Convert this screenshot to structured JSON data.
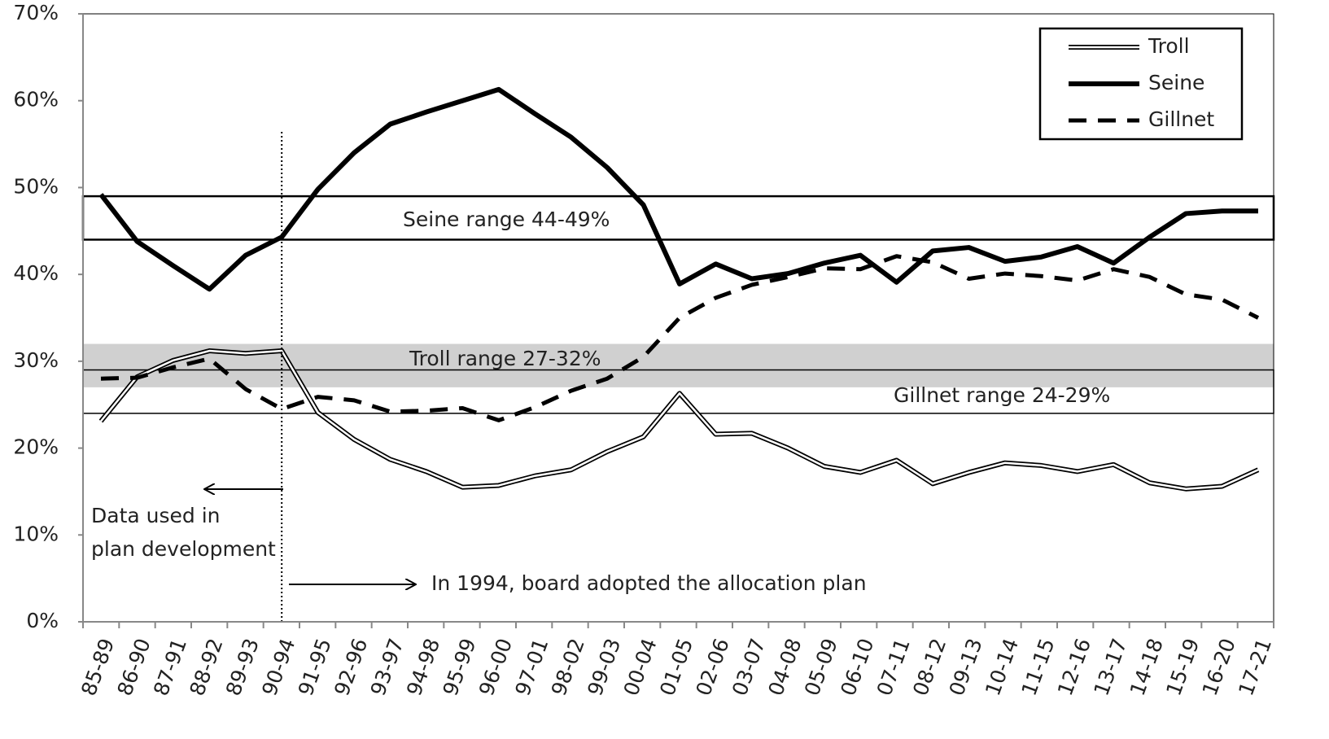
{
  "chart_data": {
    "type": "line",
    "categories": [
      "85-89",
      "86-90",
      "87-91",
      "88-92",
      "89-93",
      "90-94",
      "91-95",
      "92-96",
      "93-97",
      "94-98",
      "95-99",
      "96-00",
      "97-01",
      "98-02",
      "99-03",
      "00-04",
      "01-05",
      "02-06",
      "03-07",
      "04-08",
      "05-09",
      "06-10",
      "07-11",
      "08-12",
      "09-13",
      "10-14",
      "11-15",
      "12-16",
      "13-17",
      "14-18",
      "15-19",
      "16-20",
      "17-21"
    ],
    "series": [
      {
        "name": "Troll",
        "color": "#000000",
        "style": "double",
        "values": [
          23.1,
          28.2,
          30.1,
          31.2,
          30.9,
          31.2,
          24.1,
          21,
          18.7,
          17.3,
          15.5,
          15.7,
          16.8,
          17.5,
          19.6,
          21.3,
          26.3,
          21.6,
          21.7,
          20,
          17.9,
          17.2,
          18.6,
          15.9,
          17.2,
          18.3,
          18,
          17.3,
          18.1,
          16,
          15.3,
          15.6,
          17.5
        ]
      },
      {
        "name": "Seine",
        "color": "#000000",
        "style": "solid",
        "values": [
          49.2,
          43.8,
          41,
          38.3,
          42.2,
          44.3,
          49.8,
          54,
          57.3,
          58.7,
          60,
          61.3,
          58.5,
          55.8,
          52.3,
          48,
          38.9,
          41.2,
          39.5,
          40.1,
          41.3,
          42.2,
          39.1,
          42.7,
          43.1,
          41.5,
          42,
          43.2,
          41.3,
          44.3,
          47,
          47.3,
          47.3
        ]
      },
      {
        "name": "Gillnet",
        "color": "#000000",
        "style": "dashed",
        "values": [
          28,
          28.1,
          29.3,
          30.3,
          26.8,
          24.5,
          25.9,
          25.5,
          24.2,
          24.3,
          24.6,
          23.2,
          24.7,
          26.6,
          28,
          30.5,
          35,
          37.3,
          38.8,
          39.7,
          40.7,
          40.6,
          42.1,
          41.4,
          39.5,
          40.1,
          39.8,
          39.3,
          40.6,
          39.7,
          37.7,
          37.1,
          35
        ]
      }
    ],
    "ranges": [
      {
        "label": "Seine range 44-49%",
        "low": 44,
        "high": 49,
        "style": "outline"
      },
      {
        "label": "Troll range 27-32%",
        "low": 27,
        "high": 32,
        "style": "fill"
      },
      {
        "label": "Gillnet range 24-29%",
        "low": 24,
        "high": 29,
        "style": "thin"
      }
    ],
    "ylim": [
      0,
      70
    ],
    "yticks": [
      {
        "value": 0,
        "label": "0%"
      },
      {
        "value": 10,
        "label": "10%"
      },
      {
        "value": 20,
        "label": "20%"
      },
      {
        "value": 30,
        "label": "30%"
      },
      {
        "value": 40,
        "label": "40%"
      },
      {
        "value": 50,
        "label": "50%"
      },
      {
        "value": 60,
        "label": "60%"
      },
      {
        "value": 70,
        "label": "70%"
      }
    ],
    "vline": "90-94",
    "annotations": {
      "data_used": [
        "Data used in",
        "plan development"
      ],
      "adopted": "In 1994, board adopted the allocation plan"
    },
    "legend": "upper right"
  }
}
